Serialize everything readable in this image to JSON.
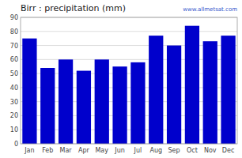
{
  "chart_data": {
    "type": "bar",
    "title": "Birr : precipitation (mm)",
    "categories": [
      "Jan",
      "Feb",
      "Mar",
      "Apr",
      "May",
      "Jun",
      "Jul",
      "Aug",
      "Sep",
      "Oct",
      "Nov",
      "Dec"
    ],
    "values": [
      75,
      54,
      60,
      52,
      60,
      55,
      58,
      77,
      70,
      84,
      73,
      77
    ],
    "color": "#0000CC",
    "ylim": [
      0,
      90
    ],
    "yticks": [
      0,
      10,
      20,
      30,
      40,
      50,
      60,
      70,
      80,
      90
    ],
    "grid": true,
    "annotations": [
      "www.allmetsat.com"
    ]
  }
}
